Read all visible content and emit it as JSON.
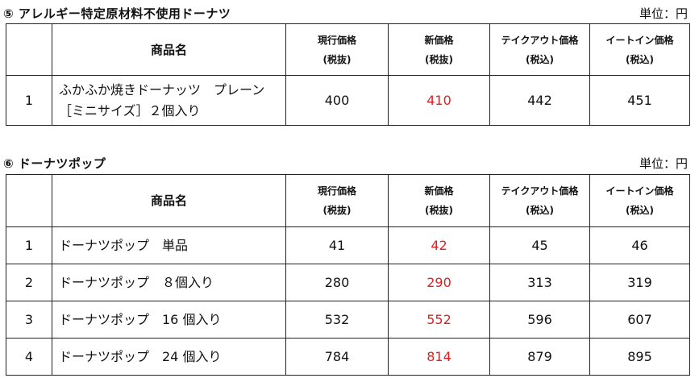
{
  "section5": {
    "title": "⑤ アレルギー特定原材料不使用ドーナツ",
    "unit": "単位：円",
    "headers": {
      "name": "商品名",
      "current_l1": "現行価格",
      "current_l2": "(税抜)",
      "new_l1": "新価格",
      "new_l2": "(税抜)",
      "takeout_l1": "テイクアウト価格",
      "takeout_l2": "(税込)",
      "eatin_l1": "イートイン価格",
      "eatin_l2": "(税込)"
    },
    "rows": [
      {
        "no": "1",
        "name_l1": "ふかふか焼きドーナッツ　プレーン",
        "name_l2": "［ミニサイズ］２個入り",
        "current": "400",
        "new": "410",
        "takeout": "442",
        "eatin": "451"
      }
    ]
  },
  "section6": {
    "title": "⑥ ドーナツポップ",
    "unit": "単位：円",
    "headers": {
      "name": "商品名",
      "current_l1": "現行価格",
      "current_l2": "(税抜)",
      "new_l1": "新価格",
      "new_l2": "(税抜)",
      "takeout_l1": "テイクアウト価格",
      "takeout_l2": "(税込)",
      "eatin_l1": "イートイン価格",
      "eatin_l2": "(税込)"
    },
    "rows": [
      {
        "no": "1",
        "name": "ドーナツポップ　単品",
        "current": "41",
        "new": "42",
        "takeout": "45",
        "eatin": "46"
      },
      {
        "no": "2",
        "name": "ドーナツポップ　８個入り",
        "current": "280",
        "new": "290",
        "takeout": "313",
        "eatin": "319"
      },
      {
        "no": "3",
        "name": "ドーナツポップ　16 個入り",
        "current": "532",
        "new": "552",
        "takeout": "596",
        "eatin": "607"
      },
      {
        "no": "4",
        "name": "ドーナツポップ　24 個入り",
        "current": "784",
        "new": "814",
        "takeout": "879",
        "eatin": "895"
      }
    ]
  },
  "colors": {
    "new_price": "#e1201f",
    "border": "#222222"
  }
}
